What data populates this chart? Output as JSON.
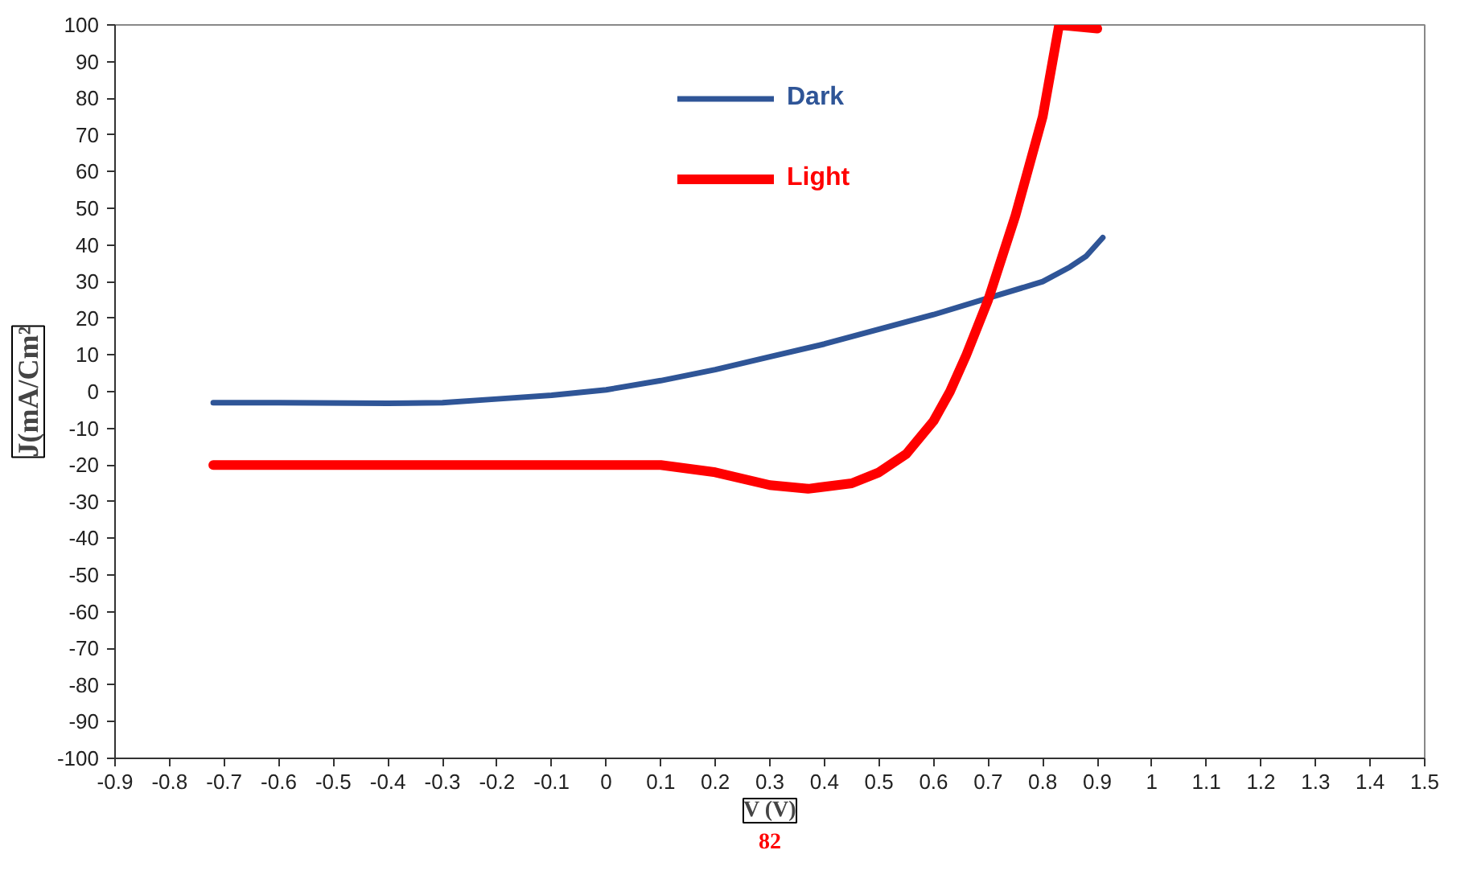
{
  "chart_data": {
    "type": "line",
    "ylabel": "J(mA/Cm²",
    "xlabel": "V (V)",
    "annotations": [
      "82"
    ],
    "xlim": [
      -0.9,
      1.5
    ],
    "ylim": [
      -100,
      100
    ],
    "xticks": [
      -0.9,
      -0.8,
      -0.7,
      -0.6,
      -0.5,
      -0.4,
      -0.3,
      -0.2,
      -0.1,
      0,
      0.1,
      0.2,
      0.3,
      0.4,
      0.5,
      0.6,
      0.7,
      0.8,
      0.9,
      1,
      1.1,
      1.2,
      1.3,
      1.4,
      1.5
    ],
    "yticks": [
      -100,
      -90,
      -80,
      -70,
      -60,
      -50,
      -40,
      -30,
      -20,
      -10,
      0,
      10,
      20,
      30,
      40,
      50,
      60,
      70,
      80,
      90,
      100
    ],
    "grid": false,
    "legend": "top",
    "line_style": "solid",
    "marker": "none",
    "series": [
      {
        "name": "Dark",
        "color": "#2f5597",
        "x": [
          -0.72,
          -0.6,
          -0.4,
          -0.3,
          -0.2,
          -0.1,
          0,
          0.1,
          0.2,
          0.3,
          0.4,
          0.5,
          0.6,
          0.7,
          0.8,
          0.85,
          0.88,
          0.91
        ],
        "values": [
          -3,
          -3,
          -3.2,
          -3,
          -2,
          -1,
          0.5,
          3,
          6,
          9.5,
          13,
          17,
          21,
          25.5,
          30,
          34,
          37,
          42
        ]
      },
      {
        "name": "Light",
        "color": "#ff0000",
        "x": [
          -0.72,
          -0.3,
          0,
          0.1,
          0.2,
          0.3,
          0.37,
          0.45,
          0.5,
          0.55,
          0.6,
          0.63,
          0.66,
          0.7,
          0.75,
          0.8,
          0.83,
          0.9
        ],
        "values": [
          -20,
          -20,
          -20,
          -20,
          -22,
          -25.5,
          -26.5,
          -25,
          -22,
          -17,
          -8,
          0,
          10,
          25,
          48,
          75,
          100,
          99
        ]
      }
    ]
  }
}
